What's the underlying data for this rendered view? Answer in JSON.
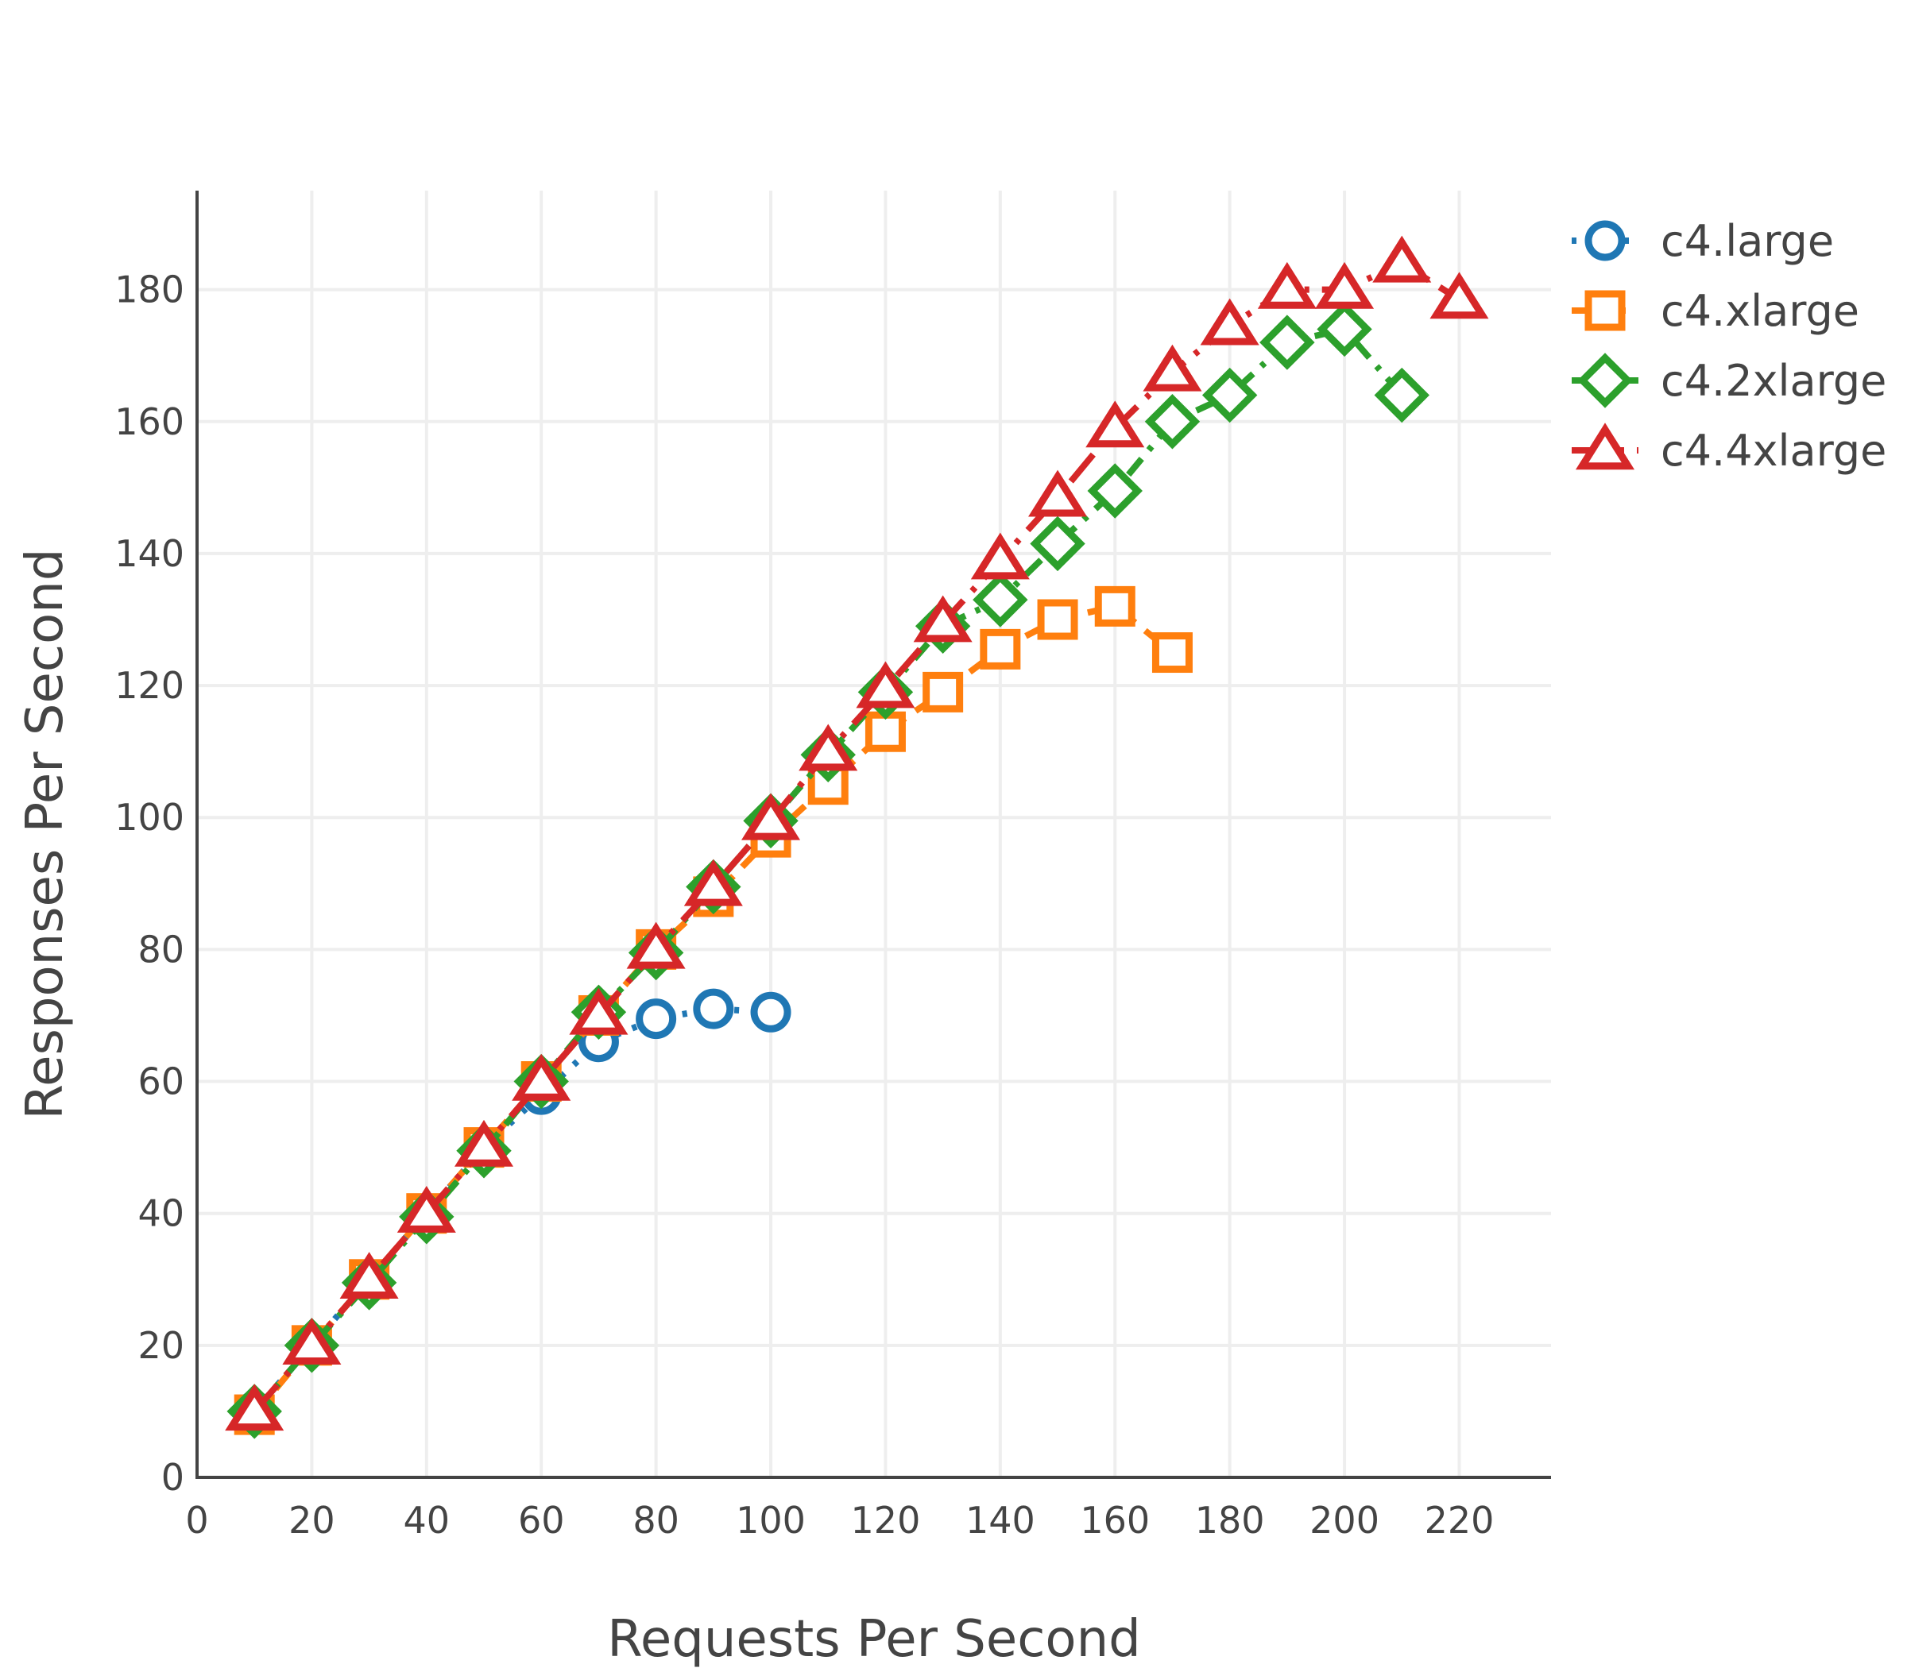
{
  "chart_data": {
    "type": "line",
    "xlabel": "Requests Per Second",
    "ylabel": "Responses Per Second",
    "xlim": [
      0,
      236
    ],
    "ylim": [
      0,
      195
    ],
    "x_ticks": [
      0,
      20,
      40,
      60,
      80,
      100,
      120,
      140,
      160,
      180,
      200,
      220
    ],
    "y_ticks": [
      0,
      20,
      40,
      60,
      80,
      100,
      120,
      140,
      160,
      180
    ],
    "grid": true,
    "legend_position": "top-right",
    "series": [
      {
        "name": "c4.large",
        "color": "#1f77b4",
        "marker": "circle",
        "dash": "dot",
        "x": [
          10,
          20,
          30,
          40,
          50,
          60,
          70,
          80,
          90,
          100
        ],
        "y": [
          10,
          20,
          30,
          40,
          50,
          58,
          66,
          69.5,
          71,
          70.5
        ]
      },
      {
        "name": "c4.xlarge",
        "color": "#ff7f0e",
        "marker": "square",
        "dash": "dash",
        "x": [
          10,
          20,
          30,
          40,
          50,
          60,
          70,
          80,
          90,
          100,
          110,
          120,
          130,
          140,
          150,
          160,
          170
        ],
        "y": [
          9.5,
          20,
          30,
          40,
          50,
          60,
          70,
          80,
          88,
          97,
          105,
          113,
          119,
          125.5,
          130,
          132,
          125
        ]
      },
      {
        "name": "c4.2xlarge",
        "color": "#2ca02c",
        "marker": "diamond",
        "dash": "dashdot",
        "x": [
          10,
          20,
          30,
          40,
          50,
          60,
          70,
          80,
          90,
          100,
          110,
          120,
          130,
          140,
          150,
          160,
          170,
          180,
          190,
          200,
          210
        ],
        "y": [
          10,
          20,
          29.5,
          39.5,
          49.5,
          60,
          70.5,
          79.5,
          89.5,
          99.5,
          109.5,
          119,
          129,
          133,
          141.5,
          149.5,
          160,
          164,
          172,
          174,
          164
        ]
      },
      {
        "name": "c4.4xlarge",
        "color": "#d62728",
        "marker": "triangle",
        "dash": "longdashdot",
        "x": [
          10,
          20,
          30,
          40,
          50,
          60,
          70,
          80,
          90,
          100,
          110,
          120,
          130,
          140,
          150,
          160,
          170,
          180,
          190,
          200,
          210,
          220
        ],
        "y": [
          10,
          20,
          30,
          40,
          50,
          60,
          70,
          80,
          89.5,
          99.5,
          110,
          119.5,
          129.5,
          139,
          148.5,
          159,
          167.5,
          174.5,
          180,
          180,
          184,
          178.5
        ]
      }
    ]
  }
}
